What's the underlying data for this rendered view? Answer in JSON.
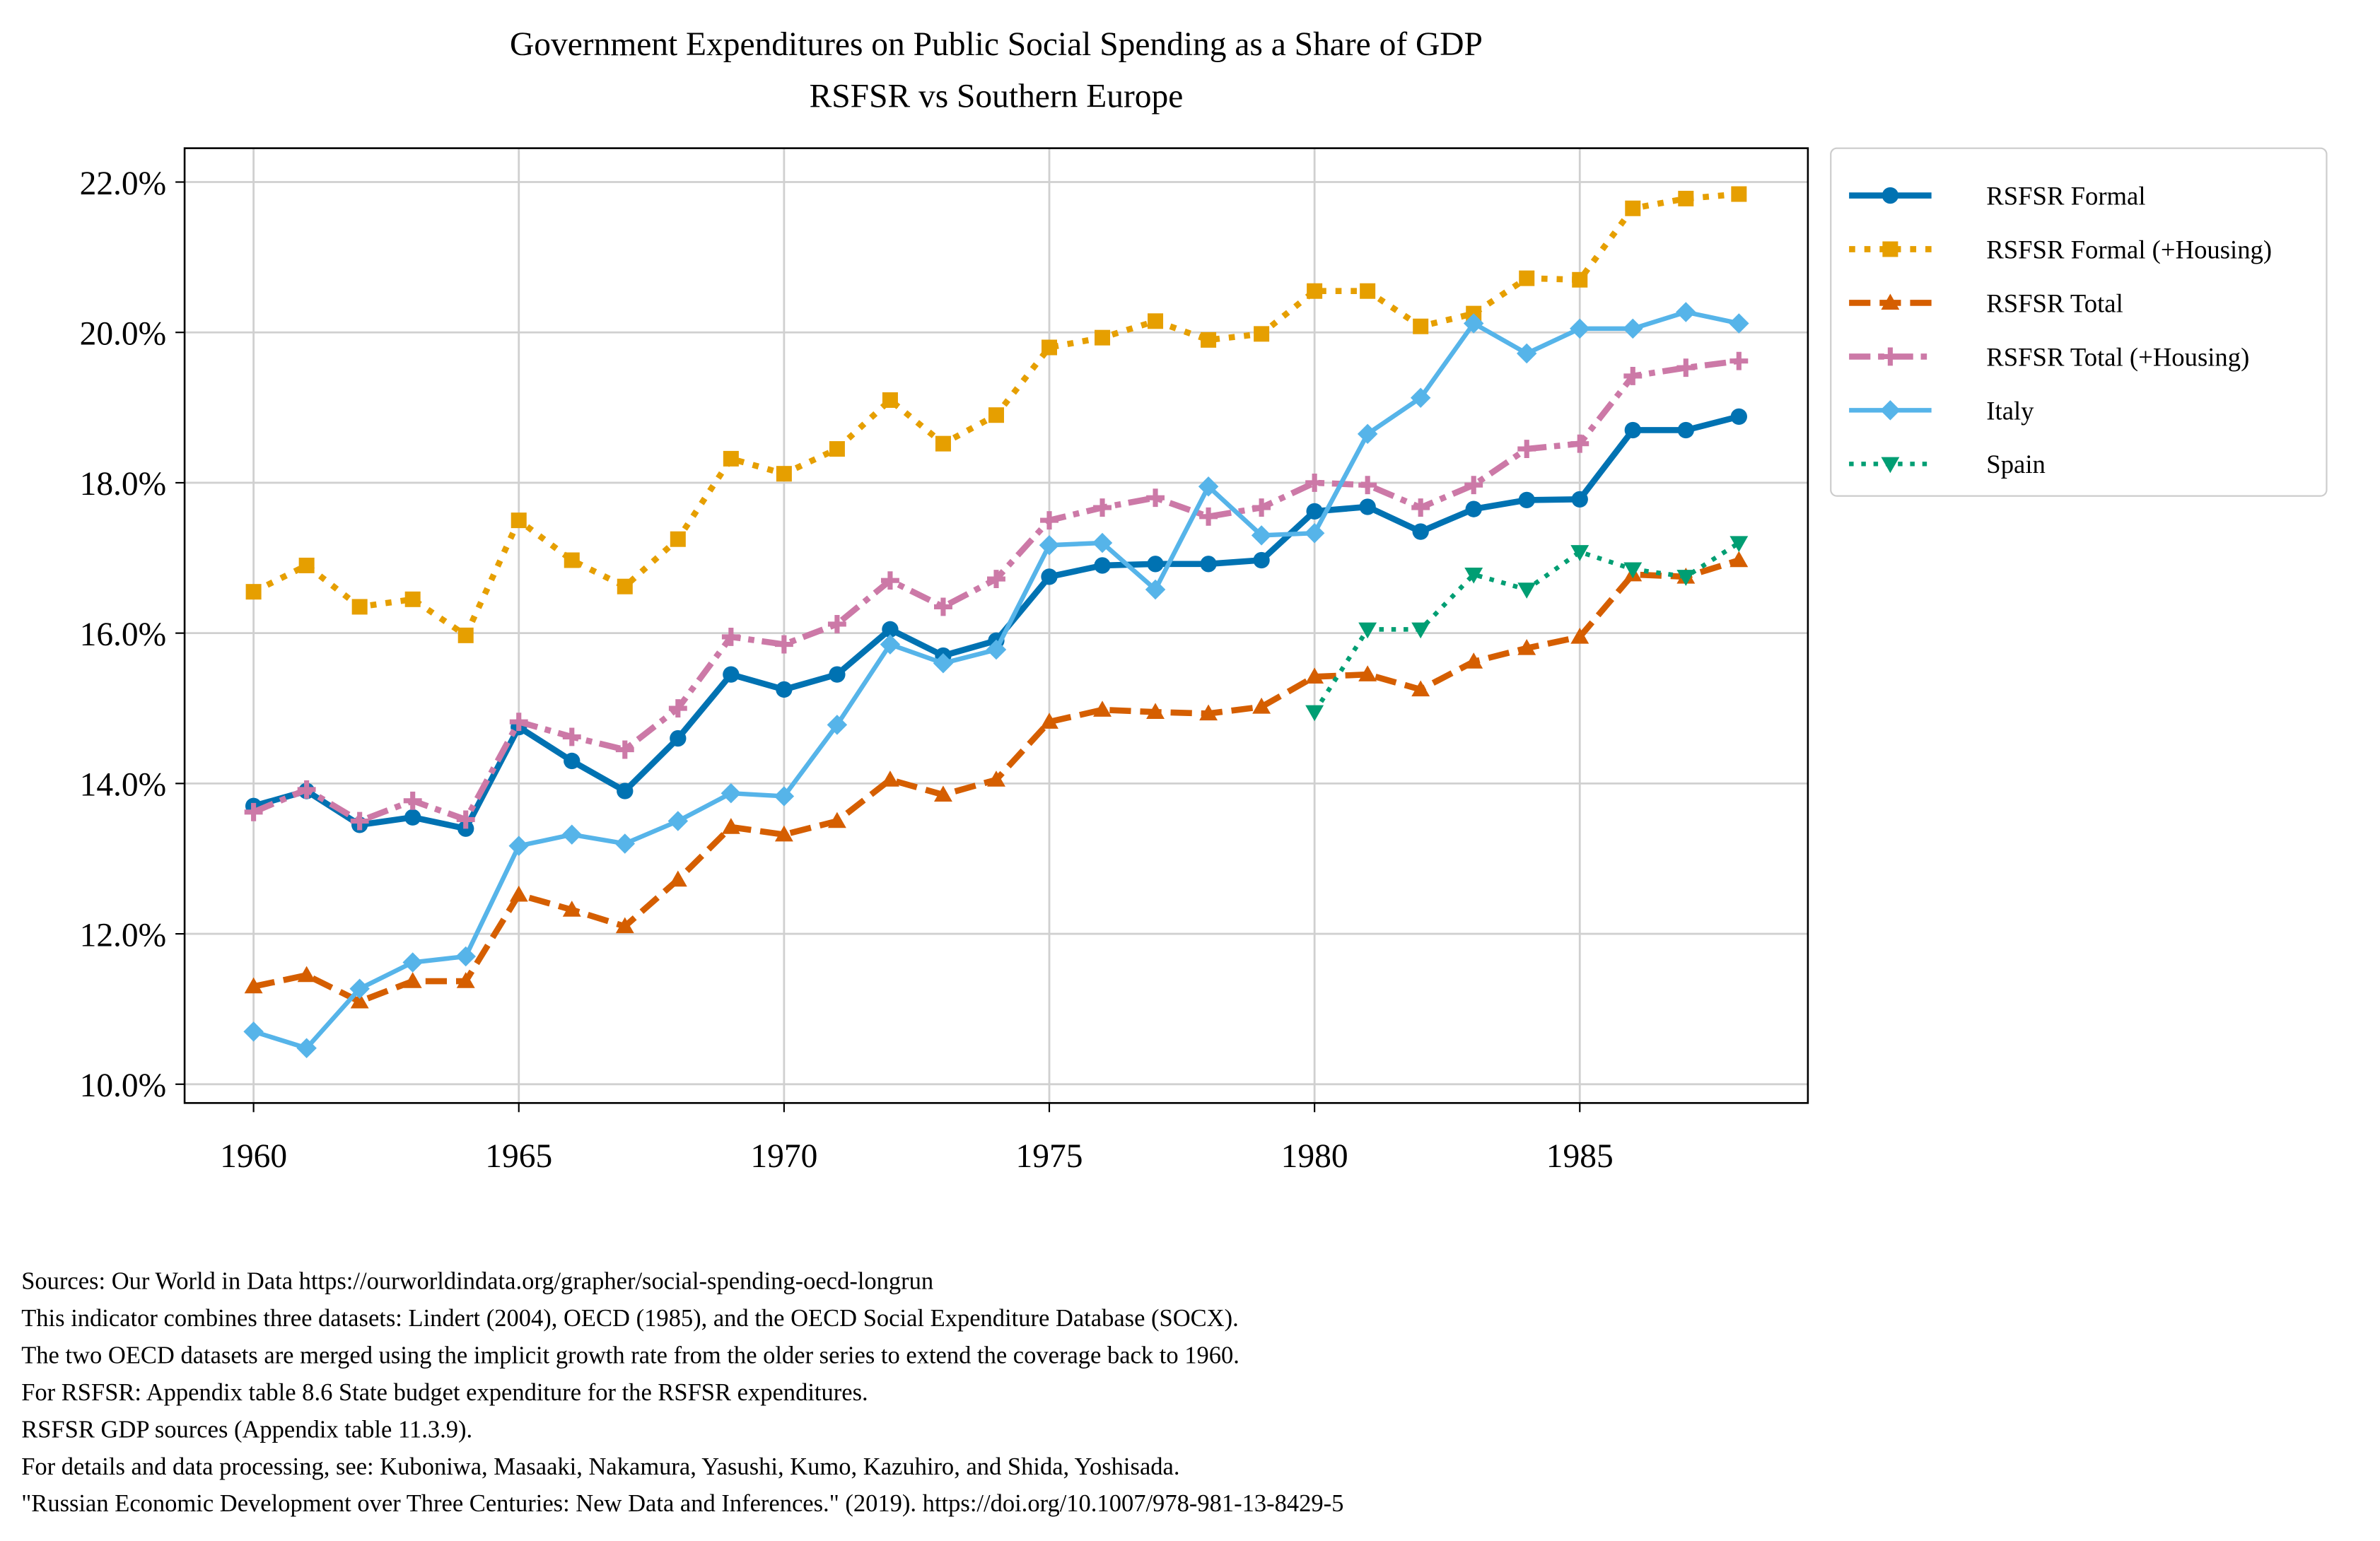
{
  "chart_data": {
    "type": "line",
    "title": "Government Expenditures on Public Social Spending as a Share of GDP",
    "subtitle": "RSFSR vs Southern Europe",
    "xlabel": "",
    "ylabel": "",
    "xlim": [
      1958.7,
      1989.3
    ],
    "ylim": [
      9.75,
      22.45
    ],
    "grid": true,
    "legend_placement": "outside-top-right",
    "x_ticks": [
      1960,
      1965,
      1970,
      1975,
      1980,
      1985
    ],
    "x_tick_labels": [
      "1960",
      "1965",
      "1970",
      "1975",
      "1980",
      "1985"
    ],
    "y_ticks": [
      10,
      12,
      14,
      16,
      18,
      20,
      22
    ],
    "y_tick_labels": [
      "10.0%",
      "12.0%",
      "14.0%",
      "16.0%",
      "18.0%",
      "20.0%",
      "22.0%"
    ],
    "series": [
      {
        "name": "RSFSR Formal",
        "color": "#0072b2",
        "marker": "circle",
        "style": "solid",
        "x_start": 1960,
        "values": [
          13.7,
          13.9,
          13.45,
          13.55,
          13.4,
          14.75,
          14.3,
          13.9,
          14.6,
          15.45,
          15.25,
          15.45,
          16.05,
          15.7,
          15.9,
          16.75,
          16.9,
          16.92,
          16.92,
          16.97,
          17.62,
          17.68,
          17.35,
          17.65,
          17.77,
          17.78,
          18.7,
          18.7,
          18.88
        ]
      },
      {
        "name": "RSFSR Formal (+Housing)",
        "color": "#e69f00",
        "marker": "square",
        "style": "dotted",
        "x_start": 1960,
        "values": [
          16.55,
          16.9,
          16.35,
          16.45,
          15.97,
          17.5,
          16.97,
          16.62,
          17.25,
          18.32,
          18.12,
          18.45,
          19.1,
          18.52,
          18.9,
          19.8,
          19.93,
          20.15,
          19.9,
          19.98,
          20.55,
          20.55,
          20.08,
          20.25,
          20.72,
          20.7,
          21.65,
          21.78,
          21.84
        ]
      },
      {
        "name": "RSFSR Total",
        "color": "#d55e00",
        "marker": "triangle-up",
        "style": "dashed",
        "x_start": 1960,
        "values": [
          11.3,
          11.45,
          11.1,
          11.37,
          11.37,
          12.52,
          12.32,
          12.1,
          12.72,
          13.42,
          13.32,
          13.5,
          14.05,
          13.85,
          14.05,
          14.82,
          14.98,
          14.95,
          14.93,
          15.02,
          15.42,
          15.45,
          15.25,
          15.62,
          15.8,
          15.95,
          16.78,
          16.75,
          16.97
        ]
      },
      {
        "name": "RSFSR Total (+Housing)",
        "color": "#cc79a7",
        "marker": "plus",
        "style": "dashdot",
        "x_start": 1960,
        "values": [
          13.62,
          13.92,
          13.5,
          13.77,
          13.52,
          14.82,
          14.62,
          14.45,
          15.0,
          15.95,
          15.85,
          16.12,
          16.7,
          16.35,
          16.72,
          17.5,
          17.67,
          17.8,
          17.55,
          17.67,
          18.0,
          17.97,
          17.67,
          17.97,
          18.45,
          18.52,
          19.42,
          19.53,
          19.62
        ]
      },
      {
        "name": "Italy",
        "color": "#56b4e9",
        "marker": "diamond",
        "style": "solid-thin",
        "x_start": 1960,
        "values": [
          10.7,
          10.48,
          11.27,
          11.62,
          11.7,
          13.17,
          13.32,
          13.2,
          13.5,
          13.87,
          13.83,
          14.78,
          15.85,
          15.6,
          15.78,
          17.17,
          17.2,
          16.58,
          17.95,
          17.3,
          17.33,
          18.65,
          19.13,
          20.12,
          19.72,
          20.05,
          20.05,
          20.27,
          20.12
        ]
      },
      {
        "name": "Spain",
        "color": "#009e73",
        "marker": "triangle-down",
        "style": "dotted-thin",
        "x_start": 1980,
        "values": [
          14.95,
          16.05,
          16.05,
          16.78,
          16.58,
          17.08,
          16.85,
          16.75,
          17.2
        ]
      }
    ]
  },
  "footnotes": [
    "Sources: Our World in Data https://ourworldindata.org/grapher/social-spending-oecd-longrun",
    "This indicator combines three datasets: Lindert (2004), OECD (1985), and the OECD Social Expenditure Database (SOCX).",
    "The two OECD datasets are merged using the implicit growth rate from the older series to extend the coverage back to 1960.",
    "For RSFSR: Appendix table 8.6 State budget expenditure for the RSFSR expenditures.",
    "RSFSR GDP sources (Appendix table 11.3.9).",
    "For details and data processing, see: Kuboniwa, Masaaki, Nakamura, Yasushi, Kumo, Kazuhiro, and Shida, Yoshisada.",
    "\"Russian Economic Development over Three Centuries: New Data and Inferences.\" (2019). https://doi.org/10.1007/978-981-13-8429-5"
  ]
}
